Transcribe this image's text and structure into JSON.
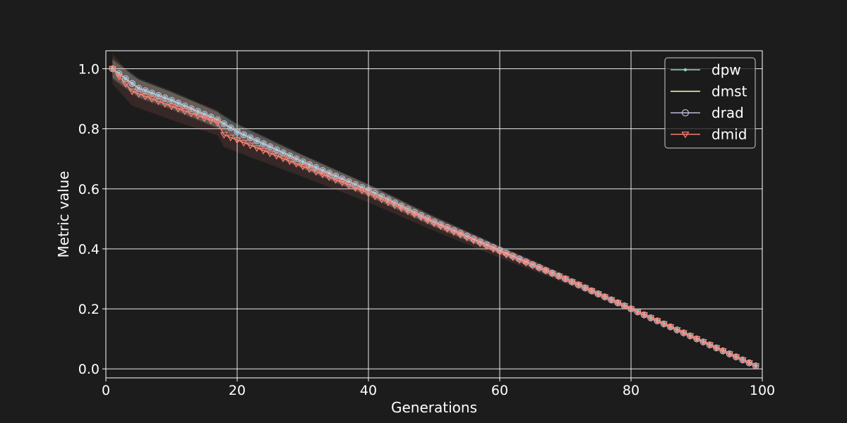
{
  "chart_data": {
    "type": "line",
    "title": "",
    "xlabel": "Generations",
    "ylabel": "Metric value",
    "xlim": [
      0,
      100
    ],
    "ylim": [
      -0.03,
      1.06
    ],
    "xticks": [
      "0",
      "20",
      "40",
      "60",
      "80",
      "100"
    ],
    "yticks": [
      "0.0",
      "0.2",
      "0.4",
      "0.6",
      "0.8",
      "1.0"
    ],
    "grid": true,
    "legend_position": "top-right",
    "background": "#1c1c1c",
    "x_range": {
      "start": 1,
      "end": 99,
      "step": 1
    },
    "series": [
      {
        "name": "dpw",
        "color": "#8dd3c7",
        "marker": "dot",
        "anchors": [
          [
            1,
            1.0
          ],
          [
            5,
            0.935
          ],
          [
            10,
            0.895
          ],
          [
            17,
            0.83
          ],
          [
            20,
            0.79
          ],
          [
            30,
            0.69
          ],
          [
            40,
            0.595
          ],
          [
            50,
            0.49
          ],
          [
            60,
            0.395
          ],
          [
            70,
            0.3
          ],
          [
            80,
            0.2
          ],
          [
            90,
            0.1
          ],
          [
            99,
            0.01
          ]
        ],
        "band": 0.03
      },
      {
        "name": "dmst",
        "color": "#ffffb3",
        "marker": "none",
        "anchors": [
          [
            1,
            1.0
          ],
          [
            5,
            0.935
          ],
          [
            10,
            0.895
          ],
          [
            17,
            0.83
          ],
          [
            20,
            0.79
          ],
          [
            30,
            0.69
          ],
          [
            40,
            0.595
          ],
          [
            50,
            0.49
          ],
          [
            60,
            0.395
          ],
          [
            70,
            0.3
          ],
          [
            80,
            0.2
          ],
          [
            90,
            0.1
          ],
          [
            99,
            0.01
          ]
        ],
        "band": 0.03
      },
      {
        "name": "drad",
        "color": "#bebada",
        "marker": "circle",
        "anchors": [
          [
            1,
            1.0
          ],
          [
            5,
            0.935
          ],
          [
            10,
            0.895
          ],
          [
            17,
            0.83
          ],
          [
            20,
            0.79
          ],
          [
            30,
            0.69
          ],
          [
            40,
            0.595
          ],
          [
            50,
            0.49
          ],
          [
            60,
            0.395
          ],
          [
            70,
            0.3
          ],
          [
            80,
            0.2
          ],
          [
            90,
            0.1
          ],
          [
            99,
            0.01
          ]
        ],
        "band": 0.035
      },
      {
        "name": "dmid",
        "color": "#fa8072",
        "marker": "triangle-down",
        "anchors": [
          [
            1,
            1.0
          ],
          [
            4,
            0.925
          ],
          [
            10,
            0.875
          ],
          [
            17,
            0.82
          ],
          [
            18,
            0.78
          ],
          [
            30,
            0.675
          ],
          [
            40,
            0.585
          ],
          [
            50,
            0.485
          ],
          [
            60,
            0.39
          ],
          [
            70,
            0.3
          ],
          [
            80,
            0.2
          ],
          [
            90,
            0.1
          ],
          [
            99,
            0.01
          ]
        ],
        "band": 0.05
      }
    ]
  }
}
